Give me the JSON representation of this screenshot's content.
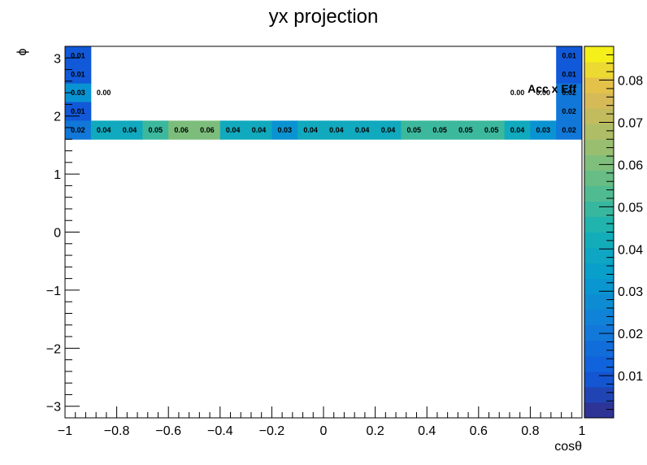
{
  "chart_data": {
    "type": "heatmap",
    "title": "yx projection",
    "xlabel": "cosθ",
    "ylabel": "ϕ",
    "annotation": "Acc x Eff",
    "xlim": [
      -1,
      1
    ],
    "ylim": [
      -3.2,
      3.2
    ],
    "x_ticks": [
      "−1",
      "−0.8",
      "−0.6",
      "−0.4",
      "−0.2",
      "0",
      "0.2",
      "0.4",
      "0.6",
      "0.8",
      "1"
    ],
    "y_ticks": [
      "−3",
      "−2",
      "−1",
      "0",
      "1",
      "2",
      "3"
    ],
    "colorbar_ticks": [
      "0.01",
      "0.02",
      "0.03",
      "0.04",
      "0.05",
      "0.06",
      "0.07",
      "0.08"
    ],
    "zlim": [
      0,
      0.088
    ],
    "nx": 20,
    "ny": 20,
    "colors": {
      "grid_low": "#352a87",
      "grid_mid": "#21b0b6",
      "grid_high": "#f9fb0e",
      "axis": "#000000"
    },
    "cells": [
      {
        "row": 0,
        "col": 0,
        "v": 0.01,
        "label": "0.01"
      },
      {
        "row": 0,
        "col": 19,
        "v": 0.01,
        "label": "0.01"
      },
      {
        "row": 1,
        "col": 0,
        "v": 0.01,
        "label": "0.01"
      },
      {
        "row": 1,
        "col": 19,
        "v": 0.01,
        "label": "0.01"
      },
      {
        "row": 2,
        "col": 0,
        "v": 0.03,
        "label": "0.03"
      },
      {
        "row": 2,
        "col": 1,
        "v": 0.0,
        "label": "0.00"
      },
      {
        "row": 2,
        "col": 17,
        "v": 0.0,
        "label": "0.00"
      },
      {
        "row": 2,
        "col": 18,
        "v": 0.0,
        "label": "0.00"
      },
      {
        "row": 2,
        "col": 19,
        "v": 0.02,
        "label": "0.02"
      },
      {
        "row": 3,
        "col": 0,
        "v": 0.01,
        "label": "0.01"
      },
      {
        "row": 3,
        "col": 19,
        "v": 0.02,
        "label": "0.02"
      },
      {
        "row": 4,
        "col": 0,
        "v": 0.02,
        "label": "0.02"
      },
      {
        "row": 4,
        "col": 1,
        "v": 0.04,
        "label": "0.04"
      },
      {
        "row": 4,
        "col": 2,
        "v": 0.04,
        "label": "0.04"
      },
      {
        "row": 4,
        "col": 3,
        "v": 0.05,
        "label": "0.05"
      },
      {
        "row": 4,
        "col": 4,
        "v": 0.06,
        "label": "0.06"
      },
      {
        "row": 4,
        "col": 5,
        "v": 0.06,
        "label": "0.06"
      },
      {
        "row": 4,
        "col": 6,
        "v": 0.04,
        "label": "0.04"
      },
      {
        "row": 4,
        "col": 7,
        "v": 0.04,
        "label": "0.04"
      },
      {
        "row": 4,
        "col": 8,
        "v": 0.03,
        "label": "0.03"
      },
      {
        "row": 4,
        "col": 9,
        "v": 0.04,
        "label": "0.04"
      },
      {
        "row": 4,
        "col": 10,
        "v": 0.04,
        "label": "0.04"
      },
      {
        "row": 4,
        "col": 11,
        "v": 0.04,
        "label": "0.04"
      },
      {
        "row": 4,
        "col": 12,
        "v": 0.04,
        "label": "0.04"
      },
      {
        "row": 4,
        "col": 13,
        "v": 0.05,
        "label": "0.05"
      },
      {
        "row": 4,
        "col": 14,
        "v": 0.05,
        "label": "0.05"
      },
      {
        "row": 4,
        "col": 15,
        "v": 0.05,
        "label": "0.05"
      },
      {
        "row": 4,
        "col": 16,
        "v": 0.05,
        "label": "0.05"
      },
      {
        "row": 4,
        "col": 17,
        "v": 0.04,
        "label": "0.04"
      },
      {
        "row": 4,
        "col": 18,
        "v": 0.03,
        "label": "0.03"
      },
      {
        "row": 4,
        "col": 19,
        "v": 0.02,
        "label": "0.02"
      }
    ]
  }
}
